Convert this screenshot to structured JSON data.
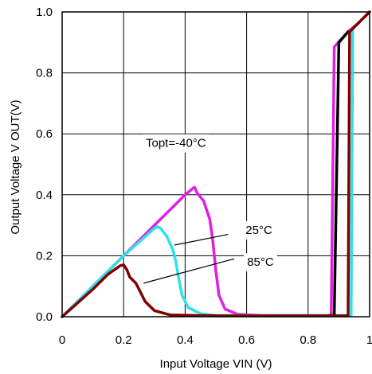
{
  "chart_data": {
    "type": "line",
    "xlabel": "Input Voltage VIN (V)",
    "ylabel": "Output Voltage V OUT(V)",
    "xlim": [
      0,
      1.0
    ],
    "ylim": [
      0,
      1.0
    ],
    "x_ticks": [
      "0",
      "0.2",
      "0.4",
      "0.6",
      "0.8",
      "1"
    ],
    "y_ticks": [
      "0.0",
      "0.2",
      "0.4",
      "0.6",
      "0.8",
      "1.0"
    ],
    "grid": true,
    "annotations": [
      {
        "text": "Topt=-40°C",
        "x": 0.37,
        "y": 0.57
      },
      {
        "text": "25°C",
        "x": 0.64,
        "y": 0.285
      },
      {
        "text": "85°C",
        "x": 0.645,
        "y": 0.18
      }
    ],
    "series": [
      {
        "color": "#e020e0",
        "points": [
          [
            0.0,
            0.0
          ],
          [
            0.05,
            0.05
          ],
          [
            0.1,
            0.1
          ],
          [
            0.15,
            0.15
          ],
          [
            0.2,
            0.2
          ],
          [
            0.25,
            0.25
          ],
          [
            0.3,
            0.3
          ],
          [
            0.35,
            0.35
          ],
          [
            0.4,
            0.4
          ],
          [
            0.43,
            0.425
          ],
          [
            0.44,
            0.405
          ],
          [
            0.46,
            0.38
          ],
          [
            0.48,
            0.32
          ],
          [
            0.49,
            0.25
          ],
          [
            0.5,
            0.15
          ],
          [
            0.51,
            0.07
          ],
          [
            0.53,
            0.025
          ],
          [
            0.57,
            0.008
          ],
          [
            0.65,
            0.004
          ],
          [
            0.87,
            0.004
          ],
          [
            0.875,
            0.004
          ],
          [
            0.885,
            0.885
          ],
          [
            0.93,
            0.935
          ],
          [
            0.96,
            0.96
          ],
          [
            1.0,
            1.0
          ]
        ]
      },
      {
        "color": "#30e0e8",
        "points": [
          [
            0.0,
            0.0
          ],
          [
            0.05,
            0.05
          ],
          [
            0.1,
            0.1
          ],
          [
            0.15,
            0.15
          ],
          [
            0.2,
            0.2
          ],
          [
            0.25,
            0.245
          ],
          [
            0.3,
            0.29
          ],
          [
            0.31,
            0.295
          ],
          [
            0.32,
            0.29
          ],
          [
            0.34,
            0.265
          ],
          [
            0.36,
            0.22
          ],
          [
            0.37,
            0.18
          ],
          [
            0.38,
            0.12
          ],
          [
            0.39,
            0.07
          ],
          [
            0.41,
            0.03
          ],
          [
            0.45,
            0.01
          ],
          [
            0.5,
            0.004
          ],
          [
            0.94,
            0.004
          ],
          [
            0.945,
            0.945
          ]
        ]
      },
      {
        "color": "#000000",
        "points": [
          [
            0.87,
            0.004
          ],
          [
            0.885,
            0.004
          ],
          [
            0.9,
            0.9
          ],
          [
            0.93,
            0.935
          ]
        ]
      },
      {
        "color": "#800000",
        "points": [
          [
            0.0,
            0.0
          ],
          [
            0.05,
            0.045
          ],
          [
            0.1,
            0.09
          ],
          [
            0.15,
            0.14
          ],
          [
            0.19,
            0.168
          ],
          [
            0.2,
            0.17
          ],
          [
            0.21,
            0.155
          ],
          [
            0.22,
            0.13
          ],
          [
            0.24,
            0.11
          ],
          [
            0.25,
            0.09
          ],
          [
            0.27,
            0.05
          ],
          [
            0.3,
            0.02
          ],
          [
            0.35,
            0.006
          ],
          [
            0.5,
            0.003
          ],
          [
            0.925,
            0.003
          ],
          [
            0.93,
            0.003
          ],
          [
            0.935,
            0.935
          ],
          [
            0.96,
            0.96
          ],
          [
            1.0,
            1.0
          ]
        ]
      }
    ]
  }
}
